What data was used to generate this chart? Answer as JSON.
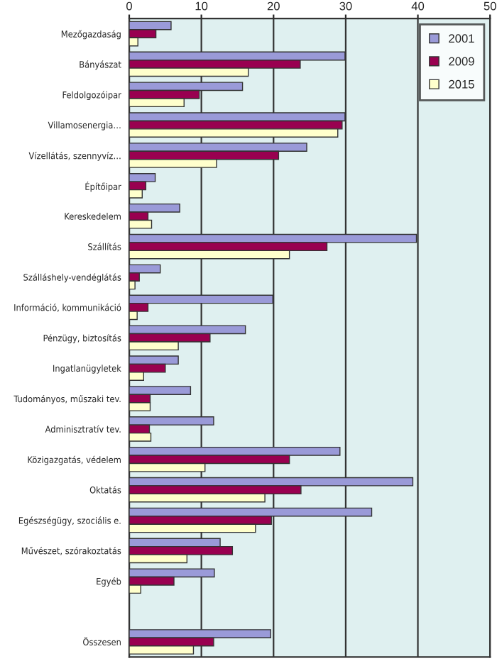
{
  "chart_data": {
    "type": "bar",
    "orientation": "horizontal",
    "categories": [
      "Mezőgazdaság",
      "Bányászat",
      "Feldolgozóipar",
      "Villamosenergia…",
      "Vízellátás, szennyvíz…",
      "Építőipar",
      "Kereskedelem",
      "Szállítás",
      "Szálláshely-vendéglátás",
      "Információ, kommunikáció",
      "Pénzügy, biztosítás",
      "Ingatlanügyletek",
      "Tudományos, műszaki tev.",
      "Adminisztratív tev.",
      "Közigazgatás, védelem",
      "Oktatás",
      "Egészségügy, szociális e.",
      "Művészet, szórakoztatás",
      "Egyéb",
      null,
      "Összesen"
    ],
    "series": [
      {
        "name": "2001",
        "color": "#9a9ad8",
        "values": [
          5.8,
          29.9,
          15.7,
          29.9,
          24.6,
          3.6,
          7.0,
          39.8,
          4.3,
          19.9,
          16.1,
          6.8,
          8.5,
          11.7,
          29.2,
          39.3,
          33.6,
          12.6,
          11.8,
          null,
          19.6
        ]
      },
      {
        "name": "2009",
        "color": "#990050",
        "values": [
          3.7,
          23.7,
          9.7,
          29.5,
          20.7,
          2.3,
          2.6,
          27.4,
          1.4,
          2.6,
          11.2,
          5.0,
          2.9,
          2.8,
          22.2,
          23.8,
          19.7,
          14.3,
          6.2,
          null,
          11.7
        ]
      },
      {
        "name": "2015",
        "color": "#ffffcc",
        "values": [
          1.2,
          16.5,
          7.6,
          28.9,
          12.1,
          1.8,
          3.1,
          22.2,
          0.8,
          1.1,
          6.8,
          2.0,
          2.9,
          3.0,
          10.5,
          18.8,
          17.5,
          8.0,
          1.6,
          null,
          8.9
        ]
      }
    ],
    "xlim": [
      0,
      50
    ],
    "xticks": [
      0,
      10,
      20,
      30,
      40,
      50
    ],
    "grid": "x",
    "legend": "top right"
  }
}
